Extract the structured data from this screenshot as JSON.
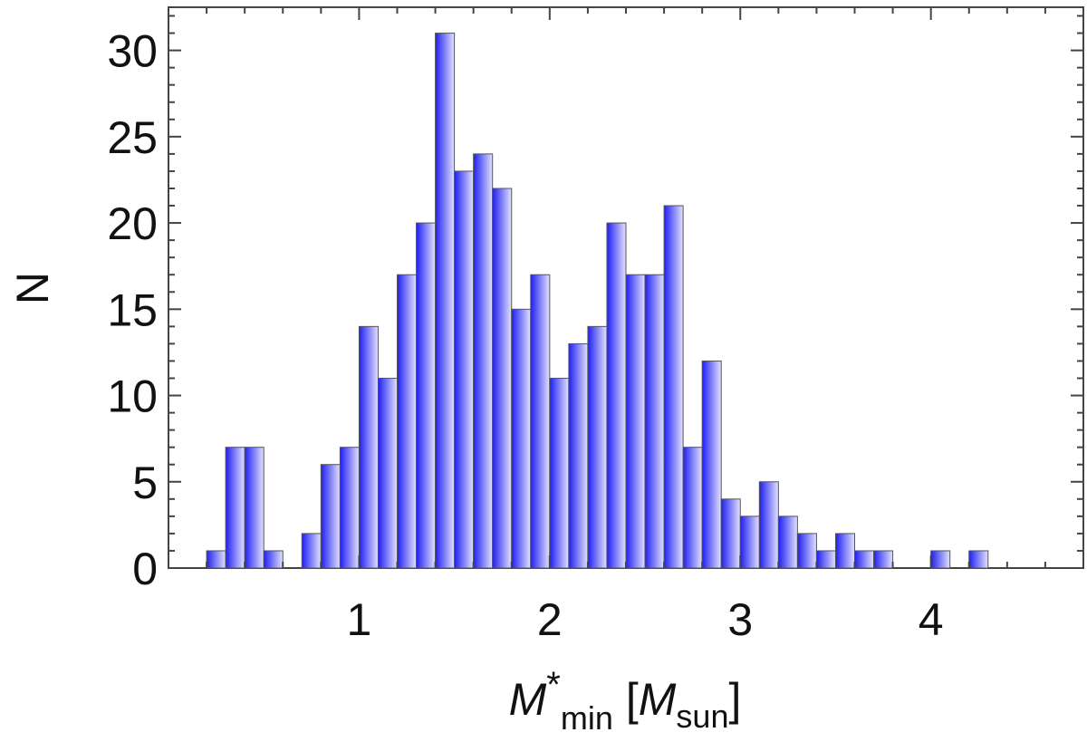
{
  "chart_data": {
    "type": "bar",
    "bin_width": 0.1,
    "bin_starts": [
      0.2,
      0.3,
      0.4,
      0.5,
      0.6,
      0.7,
      0.8,
      0.9,
      1.0,
      1.1,
      1.2,
      1.3,
      1.4,
      1.5,
      1.6,
      1.7,
      1.8,
      1.9,
      2.0,
      2.1,
      2.2,
      2.3,
      2.4,
      2.5,
      2.6,
      2.7,
      2.8,
      2.9,
      3.0,
      3.1,
      3.2,
      3.3,
      3.4,
      3.5,
      3.6,
      3.7,
      3.8,
      3.9,
      4.0,
      4.1,
      4.2
    ],
    "values": [
      1,
      7,
      7,
      1,
      0,
      2,
      6,
      7,
      14,
      11,
      17,
      20,
      31,
      23,
      24,
      22,
      15,
      17,
      11,
      13,
      14,
      20,
      17,
      17,
      21,
      7,
      12,
      4,
      3,
      5,
      3,
      2,
      1,
      2,
      1,
      1,
      0,
      0,
      1,
      0,
      1
    ],
    "xlim": [
      0.0,
      4.8
    ],
    "ylim": [
      0,
      32.5
    ],
    "xticks": [
      1,
      2,
      3,
      4
    ],
    "xtick_labels": [
      "1",
      "2",
      "3",
      "4"
    ],
    "yticks": [
      0,
      5,
      10,
      15,
      20,
      25,
      30
    ],
    "ytick_labels": [
      "0",
      "5",
      "10",
      "15",
      "20",
      "25",
      "30"
    ],
    "x_minor_step": 0.2,
    "y_minor_step": 1,
    "xlabel": {
      "symbol": "M",
      "sup": "*",
      "sub": "min",
      "open": "[",
      "unit_symbol": "M",
      "unit_sub": "sun",
      "close": "]"
    },
    "ylabel": "N",
    "grid": false,
    "colors": {
      "bar_dark": "#1f1ff2",
      "bar_light": "#e2e2ff",
      "bar_edge": "#555555",
      "axis": "#444444"
    }
  }
}
